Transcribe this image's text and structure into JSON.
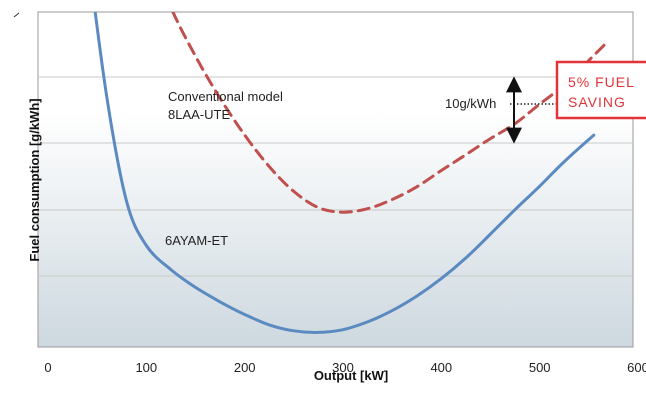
{
  "chart_data": {
    "type": "line",
    "xlabel": "Output [kW]",
    "ylabel": "Fuel consumption [g/kWh]",
    "xlim": [
      0,
      600
    ],
    "x_ticks": [
      "0",
      "100",
      "200",
      "300",
      "400",
      "500",
      "600"
    ],
    "y_ticks": [],
    "grid": "horizontal",
    "series": [
      {
        "name": "Conventional model 8LAA-UTE",
        "style": "dashed",
        "color": "#c0504d",
        "x": [
          65,
          80,
          100,
          125,
          150,
          175,
          200,
          225,
          250,
          275,
          300,
          325,
          350,
          375,
          400,
          425,
          450,
          475,
          500,
          525,
          550,
          570
        ],
        "y": [
          352.5,
          320,
          292,
          264.5,
          243.3,
          225,
          209,
          195.3,
          184.5,
          177.5,
          175.5,
          177,
          181,
          186.5,
          193.6,
          200.5,
          207.5,
          214,
          222.5,
          230.8,
          241.5,
          250
        ]
      },
      {
        "name": "6AYAM-ET",
        "style": "solid",
        "color": "#5b8ac1",
        "x": [
          27,
          40,
          60,
          80,
          100,
          125,
          150,
          175,
          200,
          225,
          250,
          275,
          300,
          325,
          350,
          375,
          400,
          425,
          450,
          475,
          500,
          525,
          555
        ],
        "y": [
          340,
          290,
          225,
          180,
          161,
          150.5,
          142.8,
          136.5,
          131,
          126.5,
          123.9,
          123.2,
          124.4,
          127.8,
          132.7,
          139,
          146.6,
          155.6,
          166,
          176.6,
          186.8,
          197.5,
          209
        ]
      }
    ],
    "annotations": {
      "conventional_label_line1": "Conventional model",
      "conventional_label_line2": "8LAA-UTE",
      "new_model_label": "6AYAM-ET",
      "difference_label": "10g/kWh",
      "saving_line1": "5% FUEL",
      "saving_line2": "SAVING"
    }
  },
  "colors": {
    "conventional": "#c0504d",
    "new_model": "#5b8ac1",
    "saving_box_border": "#e2333a",
    "saving_text": "#e2333a",
    "plot_bg_top": "#ffffff",
    "plot_bg_bottom": "#cdd8df"
  }
}
